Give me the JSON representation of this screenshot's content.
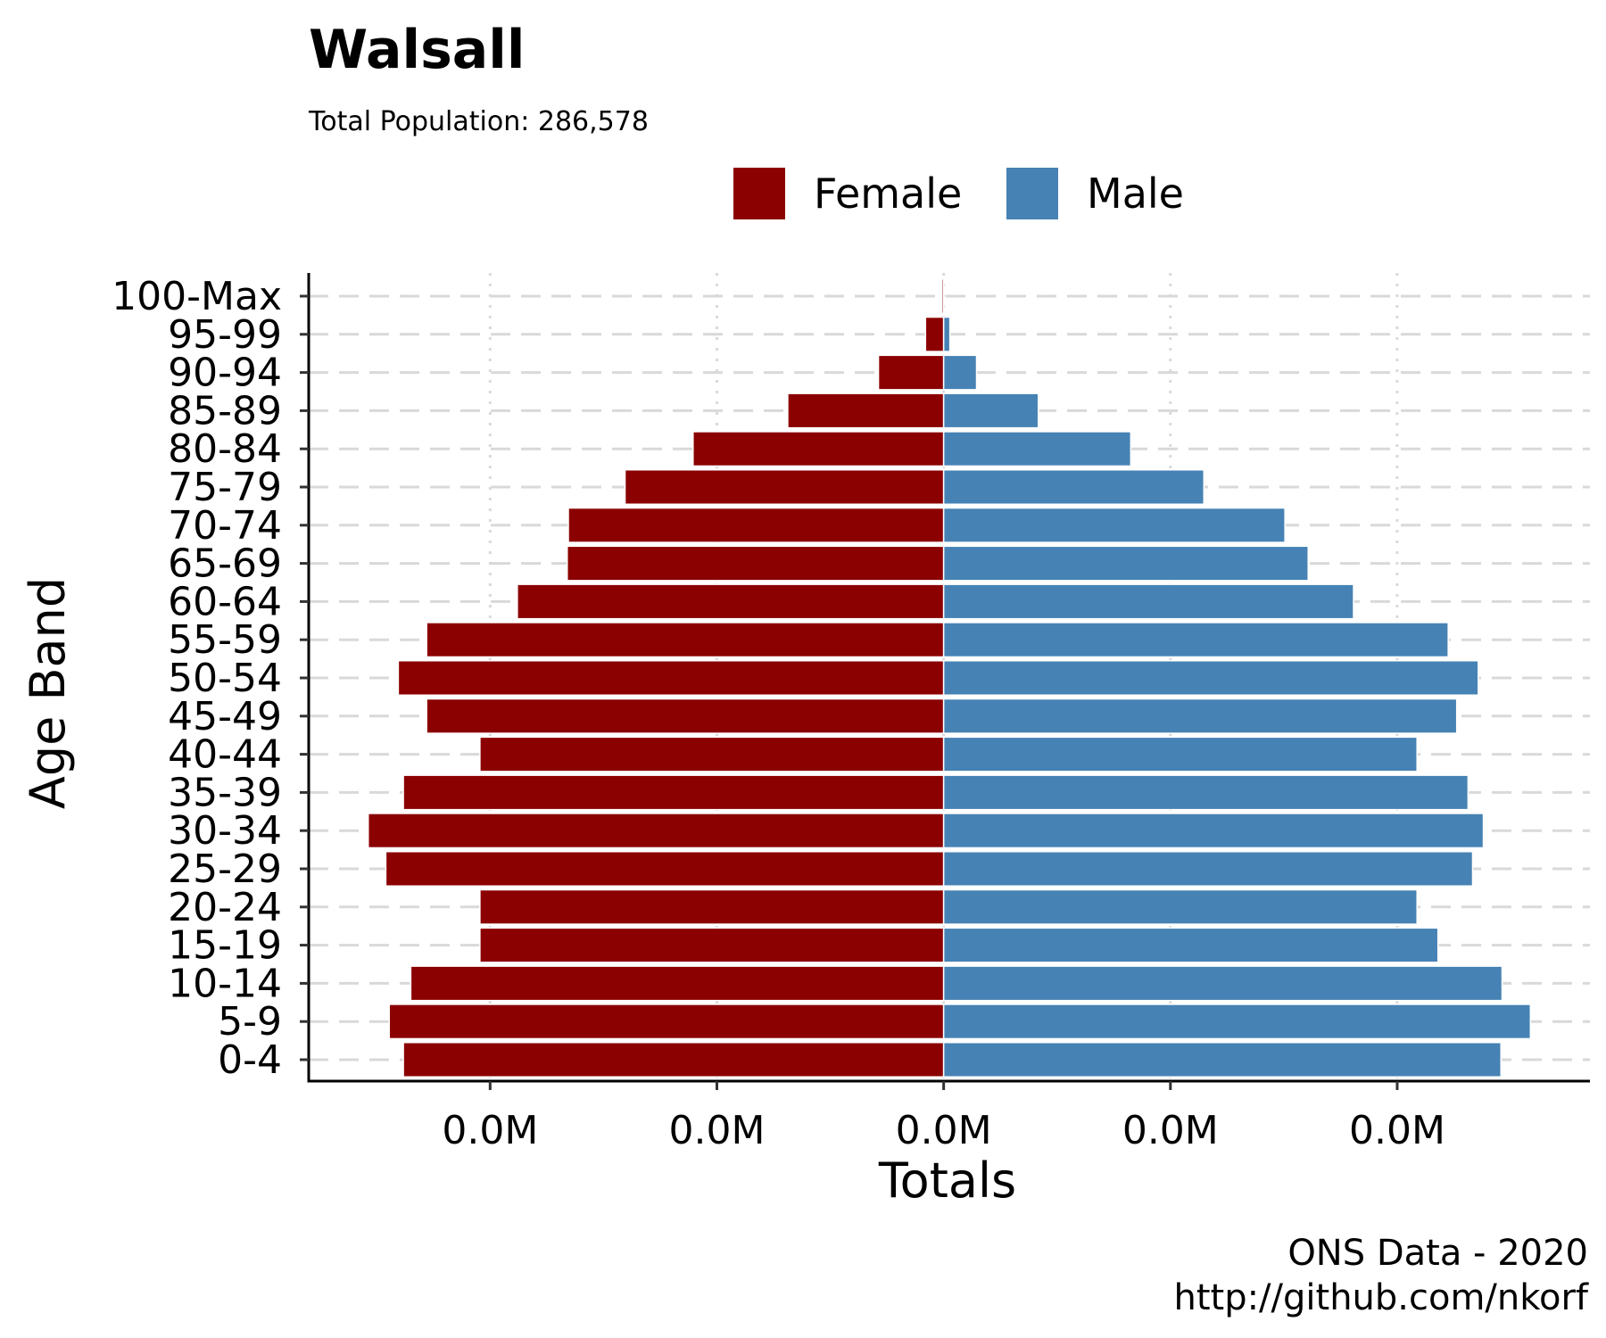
{
  "chart_data": {
    "type": "bar",
    "orientation": "horizontal",
    "title": "Walsall",
    "subtitle": "Total Population:  286,578",
    "xlabel": "Totals",
    "ylabel": "Age Band",
    "caption_line1": "ONS Data - 2020",
    "caption_line2": "http://github.com/nkorf",
    "legend": {
      "placement": "top",
      "entries": [
        "Female",
        "Male"
      ]
    },
    "colors": {
      "Female": "#8b0000",
      "Male": "#4682b4"
    },
    "categories": [
      "0-4",
      "5-9",
      "10-14",
      "15-19",
      "20-24",
      "25-29",
      "30-34",
      "35-39",
      "40-44",
      "45-49",
      "50-54",
      "55-59",
      "60-64",
      "65-69",
      "70-74",
      "75-79",
      "80-84",
      "85-89",
      "90-94",
      "95-99",
      "100-Max"
    ],
    "series": [
      {
        "name": "Female",
        "values": [
          -9530,
          -9780,
          -9400,
          -8180,
          -8180,
          -9840,
          -10150,
          -9530,
          -8180,
          -9120,
          -9620,
          -9120,
          -7520,
          -6640,
          -6620,
          -5620,
          -4420,
          -2750,
          -1150,
          -320,
          -30
        ]
      },
      {
        "name": "Male",
        "values": [
          9830,
          10350,
          9850,
          8720,
          8350,
          9330,
          9520,
          9250,
          8350,
          9050,
          9430,
          8900,
          7230,
          6430,
          6020,
          4590,
          3300,
          1670,
          580,
          110,
          0
        ]
      }
    ],
    "xticks": {
      "values": [
        -8000,
        -4000,
        0,
        4000,
        8000
      ],
      "labels": [
        "0.0M",
        "0.0M",
        "0.0M",
        "0.0M",
        "0.0M"
      ]
    },
    "xlim": [
      -11200,
      11400
    ],
    "grid": {
      "x_major": "dotted",
      "y_major": "dashed"
    }
  }
}
